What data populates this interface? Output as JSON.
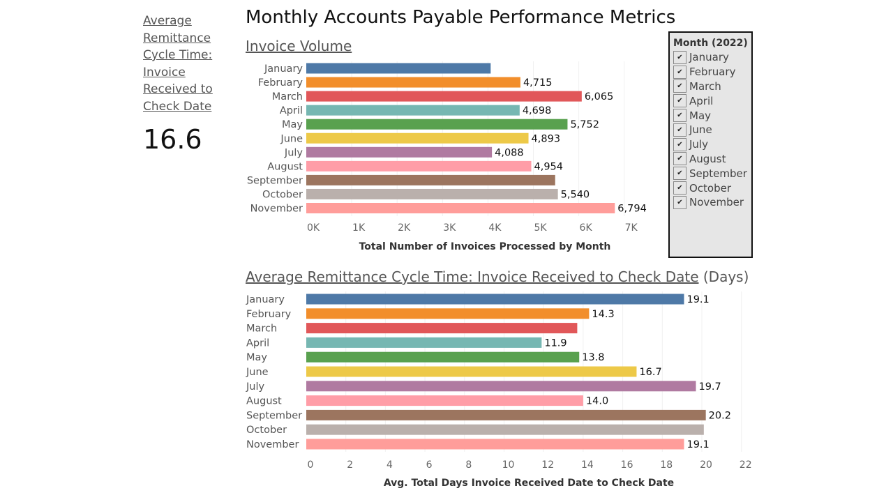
{
  "page_title": "Monthly Accounts Payable Performance Metrics",
  "kpi": {
    "title": "Average Remittance Cycle Time: Invoice Received to Check Date",
    "value": "16.6"
  },
  "filter": {
    "title": "Month (2022)",
    "items": [
      "January",
      "February",
      "March",
      "April",
      "May",
      "June",
      "July",
      "August",
      "September",
      "October",
      "November"
    ],
    "checked": [
      true,
      true,
      true,
      true,
      true,
      true,
      true,
      true,
      true,
      true,
      true
    ]
  },
  "colors": [
    "#4e79a7",
    "#f28e2b",
    "#e15759",
    "#76b7b2",
    "#59a14f",
    "#edc948",
    "#b07aa1",
    "#ff9da7",
    "#9c755f",
    "#bab0ac",
    "#ff9d9a"
  ],
  "chart_data": [
    {
      "type": "bar",
      "orientation": "horizontal",
      "title": "Invoice Volume",
      "xlabel": "Total Number of Invoices Processed by Month",
      "categories": [
        "January",
        "February",
        "March",
        "April",
        "May",
        "June",
        "July",
        "August",
        "September",
        "October",
        "November"
      ],
      "values": [
        4060,
        4715,
        6065,
        4698,
        5752,
        4893,
        4088,
        4954,
        5480,
        5540,
        6794
      ],
      "labels": [
        null,
        "4,715",
        "6,065",
        "4,698",
        "5,752",
        "4,893",
        "4,088",
        "4,954",
        null,
        "5,540",
        "6,794"
      ],
      "xticks": [
        "0K",
        "1K",
        "2K",
        "3K",
        "4K",
        "5K",
        "6K",
        "7K"
      ],
      "xlim": [
        0,
        7800
      ]
    },
    {
      "type": "bar",
      "orientation": "horizontal",
      "title": "Average Remittance Cycle Time: Invoice Received to Check Date",
      "title_suffix": "(Days)",
      "xlabel": "Avg. Total Days Invoice Received Date to Check Date",
      "categories": [
        "January",
        "February",
        "March",
        "April",
        "May",
        "June",
        "July",
        "August",
        "September",
        "October",
        "November"
      ],
      "values": [
        19.1,
        14.3,
        13.7,
        11.9,
        13.8,
        16.7,
        19.7,
        14.0,
        20.2,
        20.1,
        19.1
      ],
      "labels": [
        "19.1",
        "14.3",
        null,
        "11.9",
        "13.8",
        "16.7",
        "19.7",
        "14.0",
        "20.2",
        null,
        "19.1"
      ],
      "xticks": [
        "0",
        "2",
        "4",
        "6",
        "8",
        "10",
        "12",
        "14",
        "16",
        "18",
        "20",
        "22"
      ],
      "xlim": [
        0,
        22
      ]
    }
  ]
}
